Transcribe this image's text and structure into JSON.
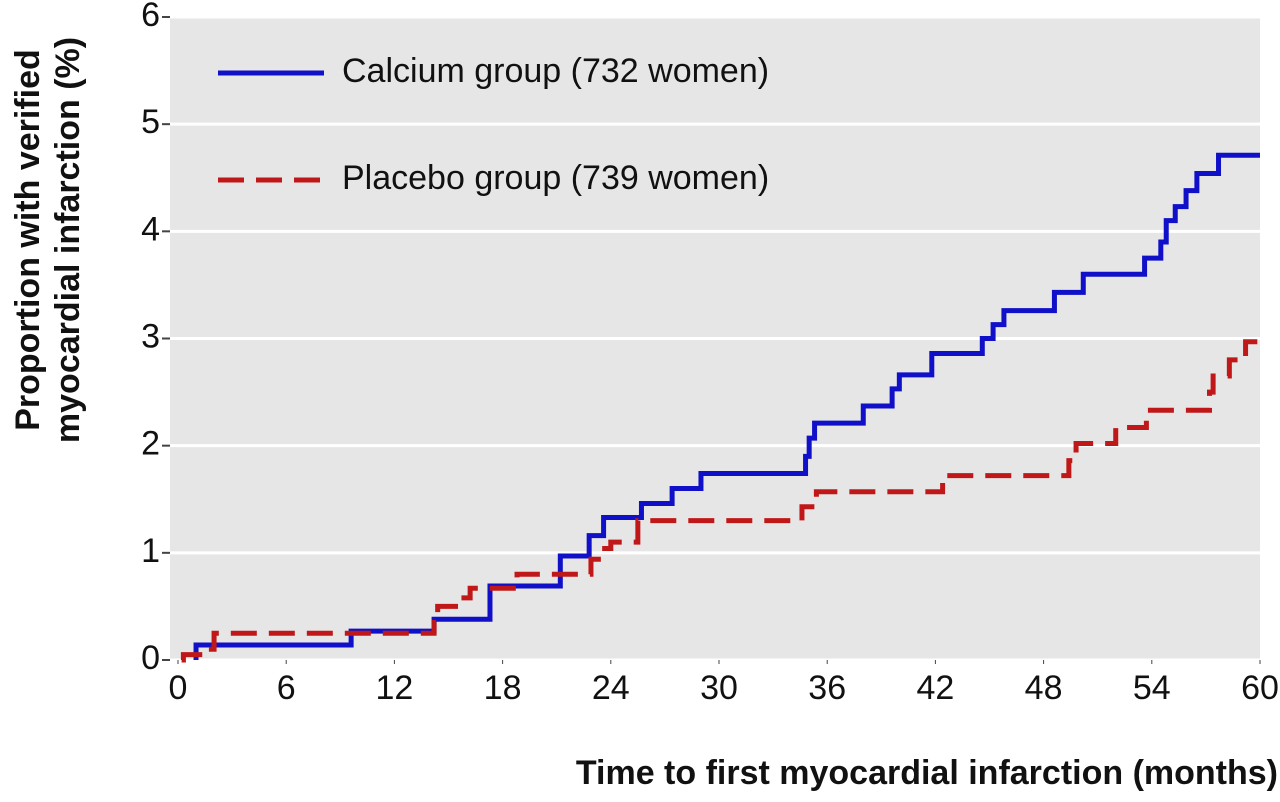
{
  "chart_data": {
    "type": "step",
    "ylabel": [
      "Proportion with verified",
      "myocardial  infarction (%)"
    ],
    "xlabel": "Time to first myocardial infarction (months)",
    "xlim": [
      0,
      60
    ],
    "xticks": [
      0,
      6,
      12,
      18,
      24,
      30,
      36,
      42,
      48,
      54,
      60
    ],
    "ylim": [
      0,
      6
    ],
    "yticks": [
      0,
      1,
      2,
      3,
      4,
      5,
      6
    ],
    "grid": true,
    "legend": "upper left",
    "series": [
      {
        "name": "Calcium group (732 women)",
        "color": "#1010c8",
        "dash": false,
        "x": [
          1.0,
          1.0,
          9.6,
          14.2,
          17.3,
          21.2,
          22.8,
          23.6,
          25.7,
          27.4,
          29.0,
          34.8,
          35.0,
          35.3,
          38.0,
          39.6,
          40.0,
          41.8,
          44.6,
          45.2,
          45.8,
          48.6,
          50.2,
          53.6,
          54.5,
          54.8,
          55.3,
          55.9,
          56.5,
          57.7,
          60
        ],
        "values": [
          0,
          0.14,
          0.27,
          0.38,
          0.69,
          0.97,
          1.16,
          1.33,
          1.46,
          1.6,
          1.74,
          1.9,
          2.07,
          2.21,
          2.37,
          2.53,
          2.66,
          2.86,
          3.0,
          3.13,
          3.26,
          3.43,
          3.6,
          3.75,
          3.9,
          4.1,
          4.23,
          4.38,
          4.54,
          4.71,
          4.71
        ]
      },
      {
        "name": "Placebo group (739 women)",
        "color": "#c01818",
        "dash": true,
        "x": [
          0.2,
          0.3,
          1.5,
          2.0,
          14.0,
          14.2,
          14.4,
          15.6,
          16.2,
          18.8,
          22.9,
          23.5,
          24.0,
          25.5,
          34.6,
          35.4,
          42.4,
          49.4,
          49.8,
          52.0,
          53.7,
          57.2,
          57.4,
          58.3,
          59.2,
          60
        ],
        "values": [
          0,
          0.05,
          0.1,
          0.25,
          0.25,
          0.35,
          0.5,
          0.58,
          0.67,
          0.8,
          0.94,
          1.04,
          1.1,
          1.3,
          1.43,
          1.57,
          1.72,
          1.86,
          2.02,
          2.17,
          2.33,
          2.5,
          2.65,
          2.8,
          2.97,
          2.97
        ]
      }
    ]
  }
}
